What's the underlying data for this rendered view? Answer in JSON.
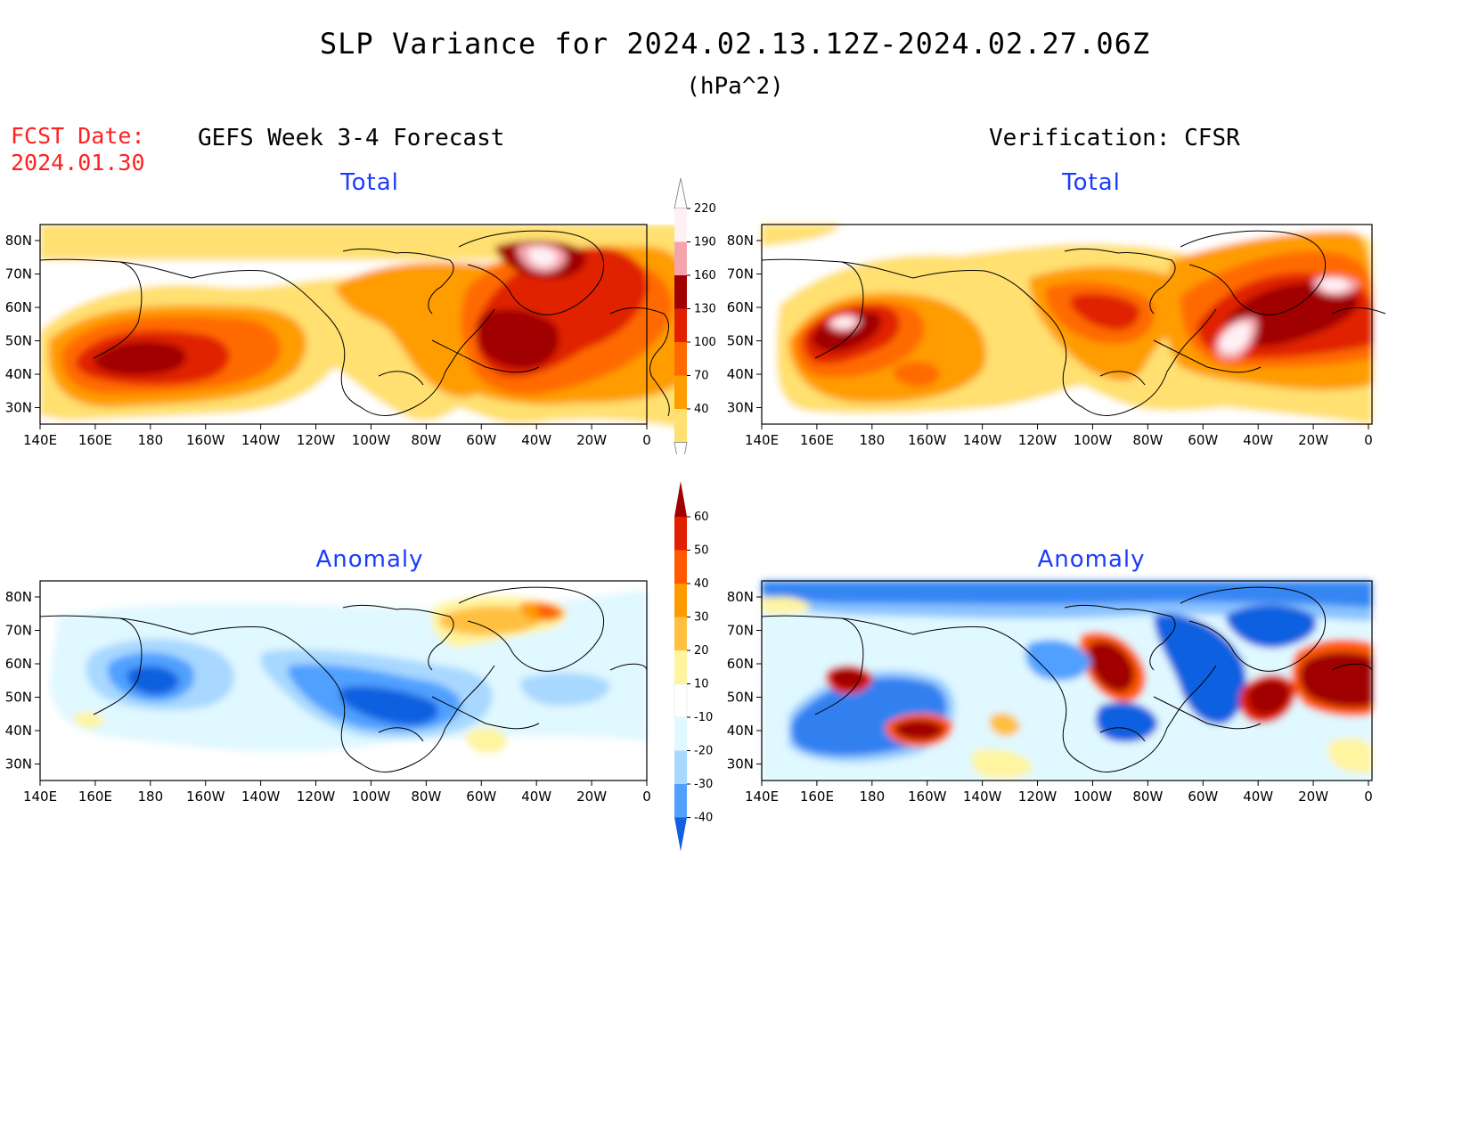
{
  "header": {
    "title": "SLP Variance for 2024.02.13.12Z-2024.02.27.06Z",
    "units": "(hPa^2)"
  },
  "forecast_date": {
    "label": "FCST Date:",
    "value": "2024.01.30"
  },
  "columns": {
    "left": "GEFS Week 3-4 Forecast",
    "right": "Verification: CFSR"
  },
  "panels": {
    "total_label": "Total",
    "anomaly_label": "Anomaly"
  },
  "axes": {
    "lon_ticks": [
      "140E",
      "160E",
      "180",
      "160W",
      "140W",
      "120W",
      "100W",
      "80W",
      "60W",
      "40W",
      "20W",
      "0"
    ],
    "lat_ticks": [
      "80N",
      "70N",
      "60N",
      "50N",
      "40N",
      "30N"
    ]
  },
  "colorbars": {
    "total": {
      "levels": [
        "220",
        "190",
        "160",
        "130",
        "100",
        "70",
        "40"
      ],
      "colors": [
        "#fff0f4",
        "#f4a4ac",
        "#a00000",
        "#e02000",
        "#ff6a00",
        "#ff9c00",
        "#ffe070"
      ]
    },
    "anomaly": {
      "levels": [
        "60",
        "50",
        "40",
        "30",
        "20",
        "10",
        "-10",
        "-20",
        "-30",
        "-40"
      ],
      "colors": [
        "#a00000",
        "#e02000",
        "#ff5a00",
        "#ff9a00",
        "#ffc040",
        "#fff4a0",
        "#ffffff",
        "#e0f8ff",
        "#a8d8ff",
        "#50a0ff",
        "#1060e0"
      ]
    }
  }
}
